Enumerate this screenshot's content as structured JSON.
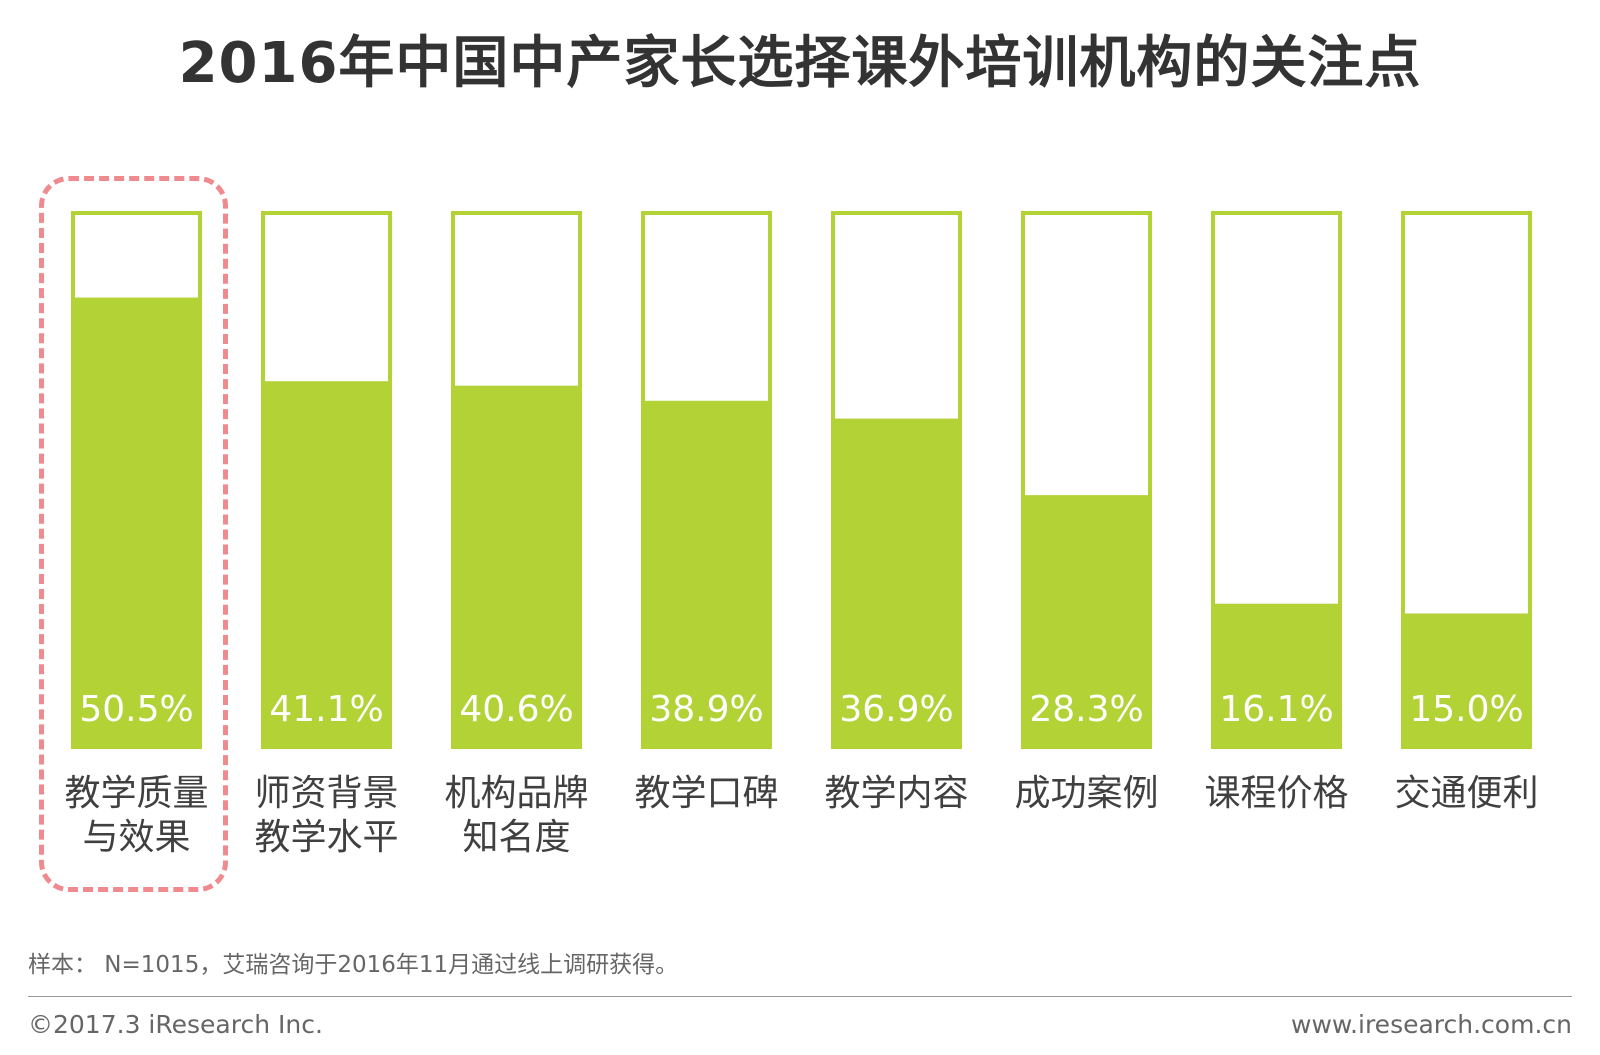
{
  "title": "2016年中国中产家长选择课外培训机构的关注点",
  "chart_data": {
    "type": "bar",
    "title": "2016年中国中产家长选择课外培训机构的关注点",
    "categories": [
      [
        "教学质量",
        "与效果"
      ],
      [
        "师资背景",
        "教学水平"
      ],
      [
        "机构品牌",
        "知名度"
      ],
      [
        "教学口碑"
      ],
      [
        "教学内容"
      ],
      [
        "成功案例"
      ],
      [
        "课程价格"
      ],
      [
        "交通便利"
      ]
    ],
    "values": [
      50.5,
      41.1,
      40.6,
      38.9,
      36.9,
      28.3,
      16.1,
      15.0
    ],
    "value_labels": [
      "50.5%",
      "41.1%",
      "40.6%",
      "38.9%",
      "36.9%",
      "28.3%",
      "16.1%",
      "15.0%"
    ],
    "ylim": [
      0,
      60
    ],
    "highlighted_category_index": 0,
    "colors": {
      "fill": "#b2d235",
      "outline": "#b2d235",
      "highlight": "#ef8a8f"
    }
  },
  "note": "样本： N=1015，艾瑞咨询于2016年11月通过线上调研获得。",
  "footer": {
    "copyright": "©2017.3  iResearch Inc.",
    "website": "www.iresearch.com.cn"
  }
}
